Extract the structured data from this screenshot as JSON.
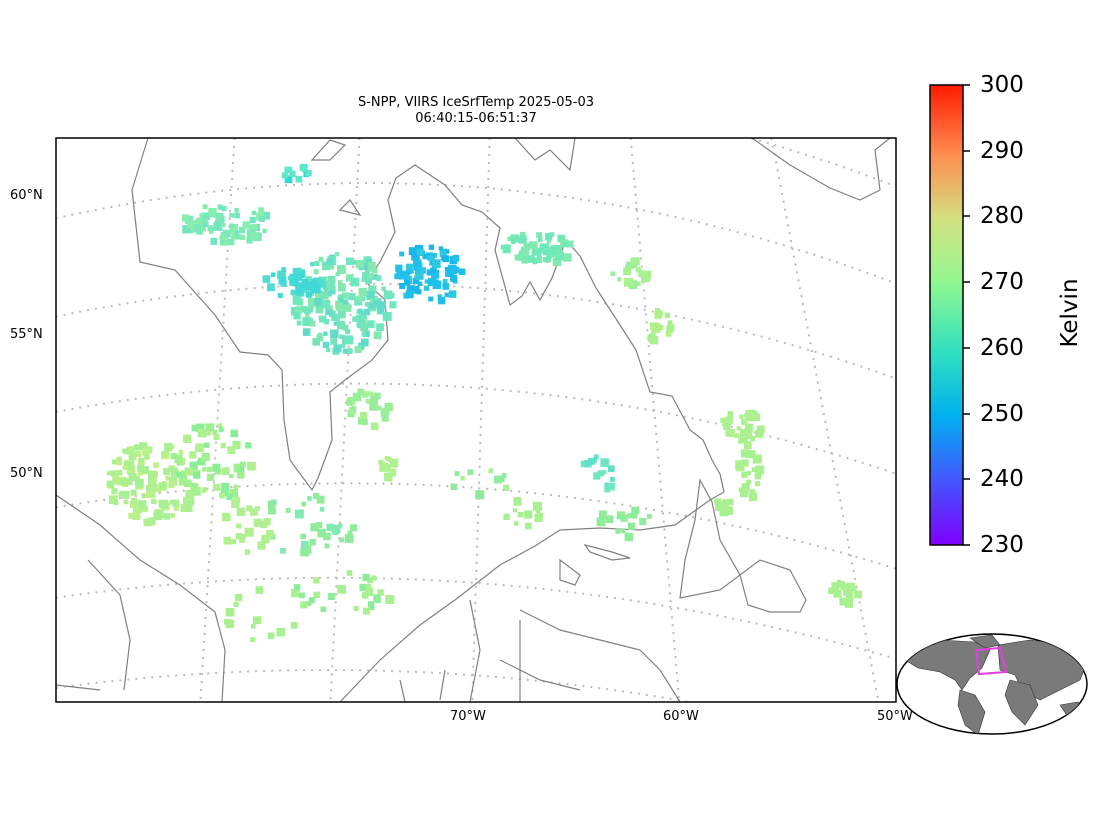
{
  "title": {
    "line1": "S-NPP, VIIRS IceSrfTemp 2025-05-03",
    "line2": "06:40:15-06:51:37"
  },
  "map": {
    "lat_labels": [
      "60°N",
      "55°N",
      "50°N"
    ],
    "lon_labels": [
      "70°W",
      "60°W",
      "50°W"
    ],
    "coastline_color": "#808080",
    "graticule_color": "#bbbbbb"
  },
  "colorbar": {
    "label": "Kelvin",
    "min": 230,
    "max": 300,
    "ticks": [
      "300",
      "290",
      "280",
      "270",
      "260",
      "250",
      "240",
      "230"
    ],
    "colormap": "rainbow"
  },
  "inset": {
    "land_color": "#7a7a7a",
    "highlight_color": "#e040e0"
  }
}
